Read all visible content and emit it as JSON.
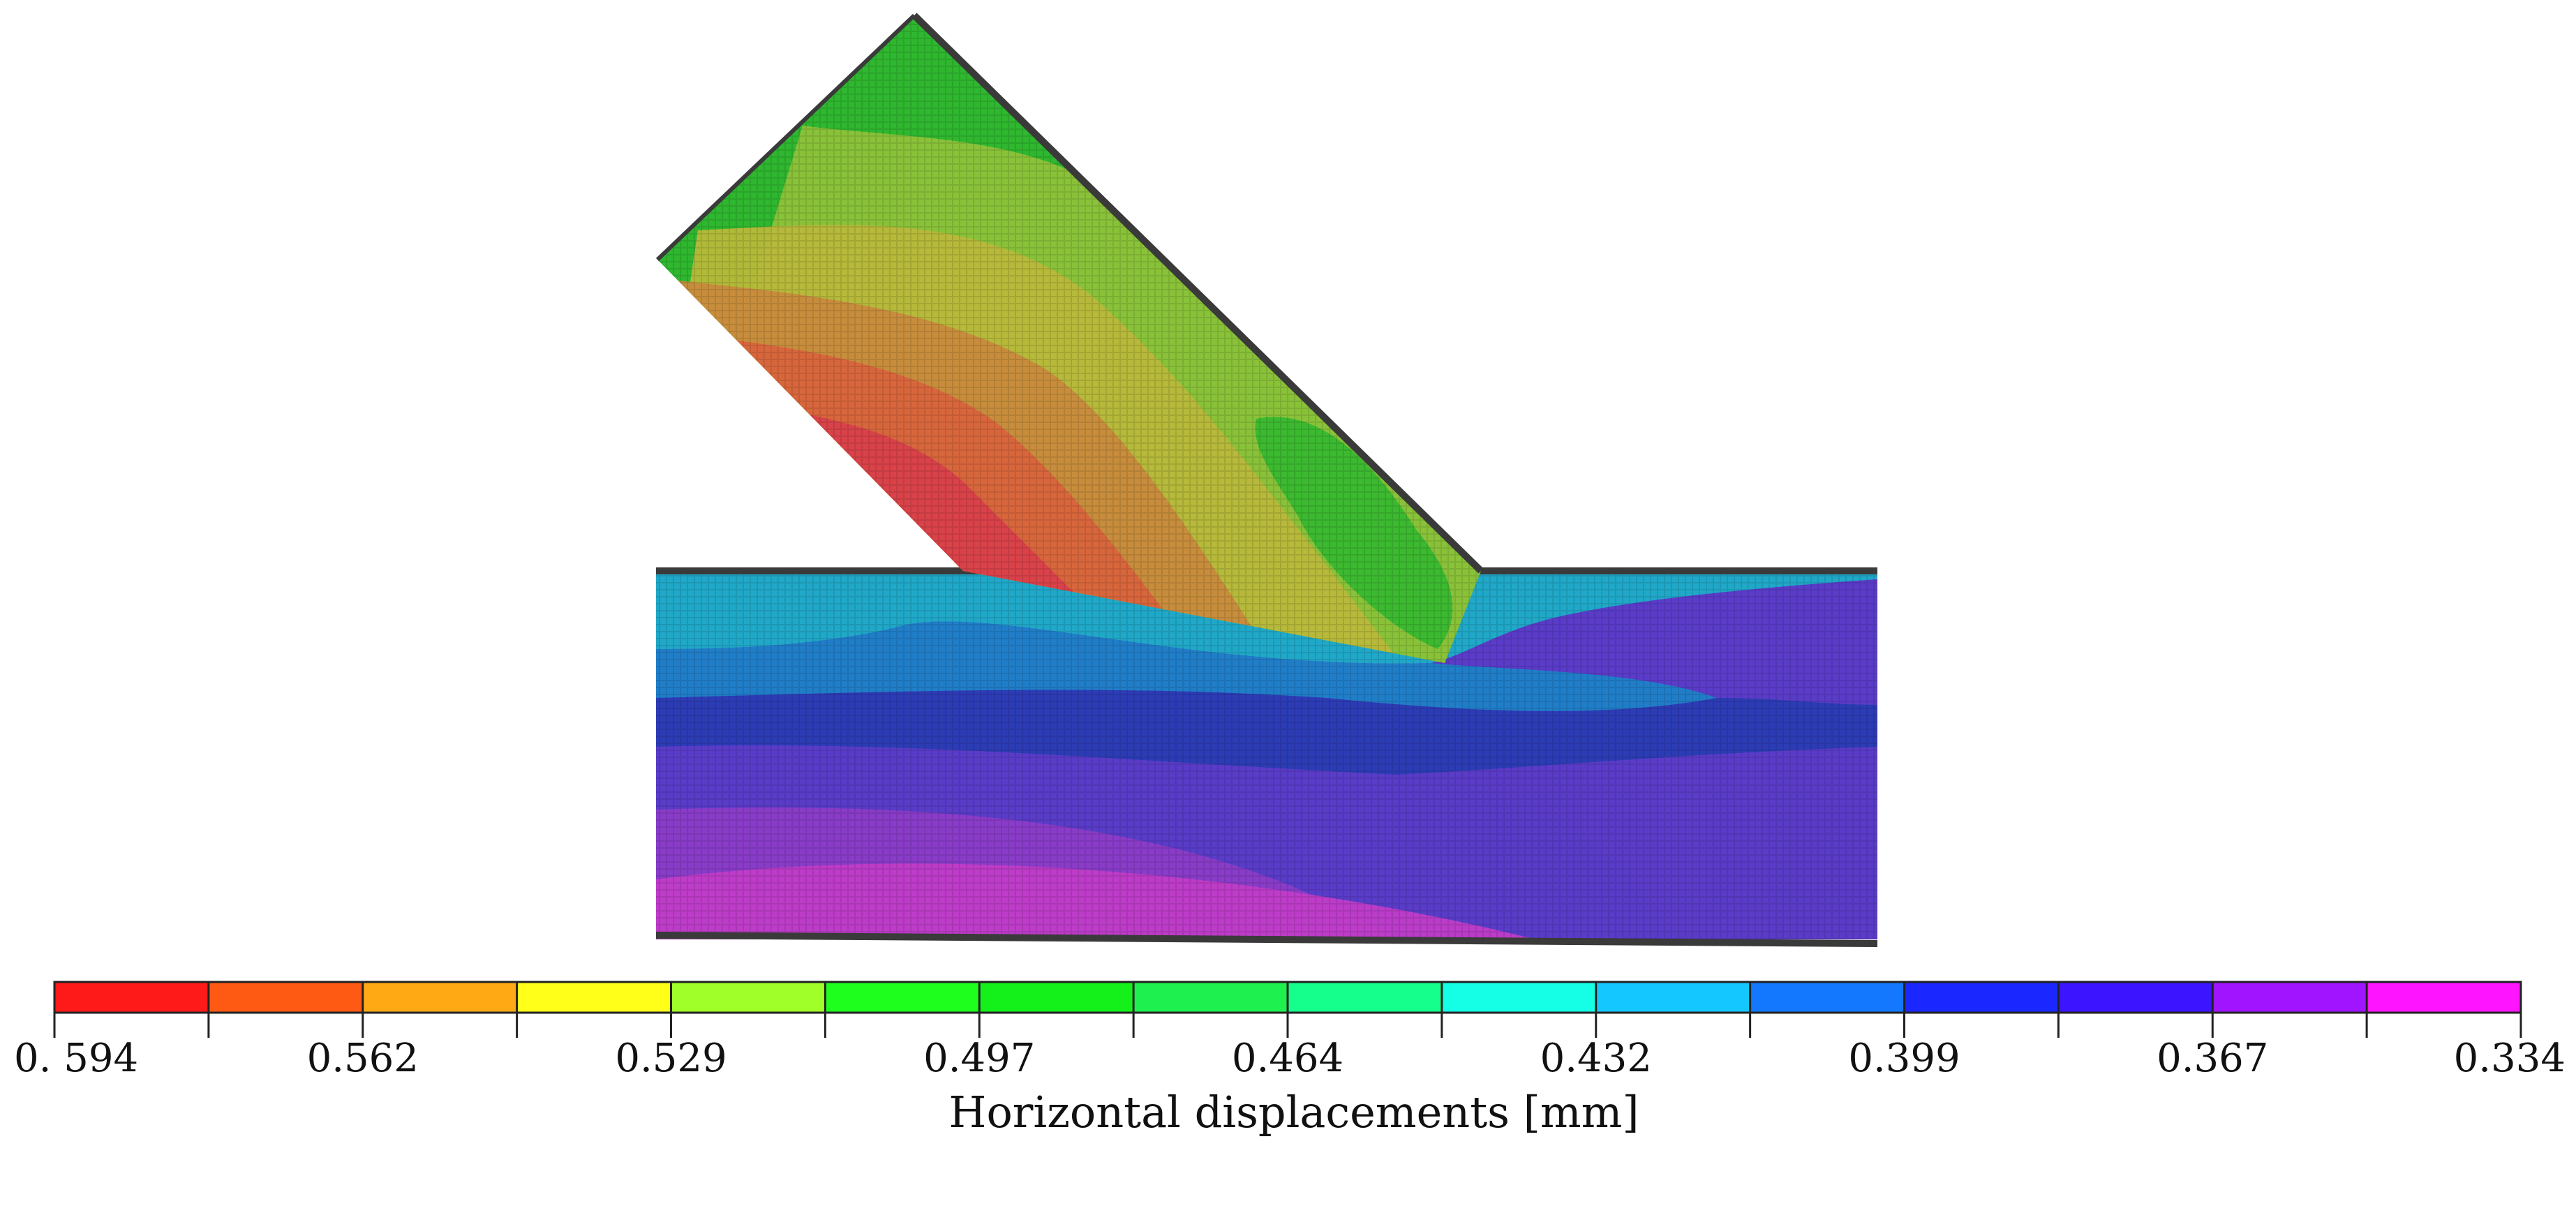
{
  "figure": {
    "colorbar": {
      "label": "Horizontal displacements [mm]",
      "tick_labels": [
        "0. 594",
        "0.562",
        "0.529",
        "0.497",
        "0.464",
        "0.432",
        "0.399",
        "0.367",
        "0.334"
      ],
      "segment_colors": [
        "#ff1a1a",
        "#ff5a14",
        "#ffaa14",
        "#ffff1a",
        "#a0ff28",
        "#1eff1e",
        "#14f01a",
        "#1ef050",
        "#14ff8c",
        "#14ffe6",
        "#14c8ff",
        "#1478ff",
        "#1a28ff",
        "#3c14ff",
        "#a014ff",
        "#ff14ff"
      ]
    },
    "specimen": {
      "diagonal_member_colors": [
        "#2fb72f",
        "#8ec23a",
        "#b8b83a",
        "#c88a3c",
        "#d9643c",
        "#d9404a"
      ],
      "chord_colors": [
        "#1ab4c8",
        "#1e82c8",
        "#2a3cb4",
        "#5a3cc8",
        "#8c3cc8",
        "#c03cc8"
      ]
    }
  }
}
